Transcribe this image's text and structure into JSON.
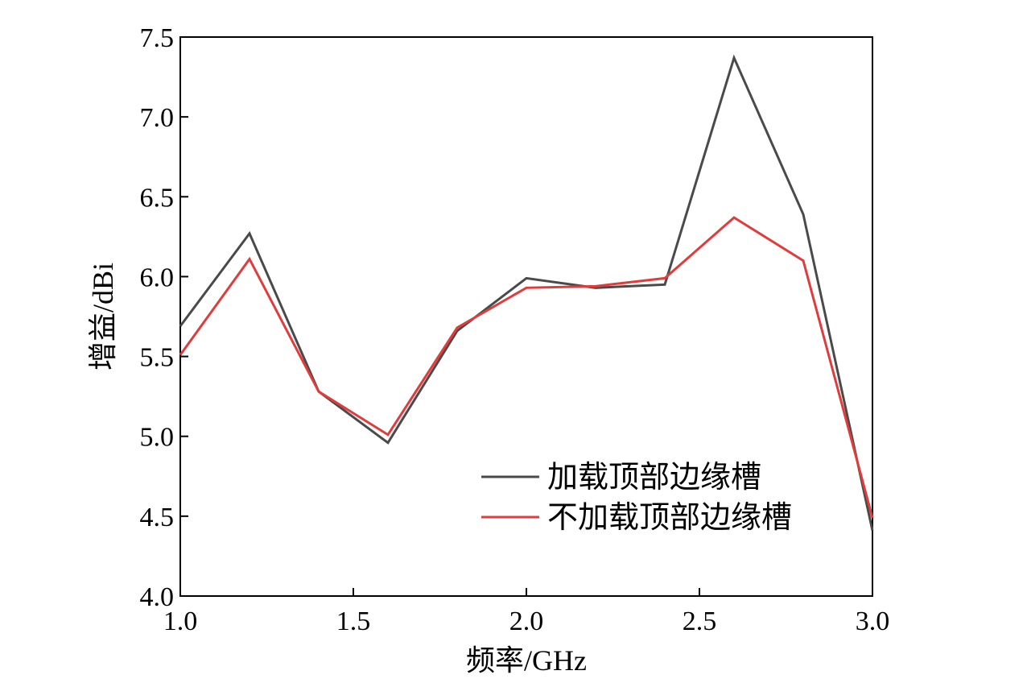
{
  "chart_data": {
    "type": "line",
    "title": "",
    "xlabel": "频率/GHz",
    "ylabel": "增益/dBi",
    "xlim": [
      1.0,
      3.0
    ],
    "ylim": [
      4.0,
      7.5
    ],
    "xticks": [
      "1.0",
      "1.5",
      "2.0",
      "2.5",
      "3.0"
    ],
    "yticks": [
      "4.0",
      "4.5",
      "5.0",
      "5.5",
      "6.0",
      "6.5",
      "7.0",
      "7.5"
    ],
    "grid": false,
    "legend_position": "bottom-right",
    "x": [
      1.0,
      1.2,
      1.4,
      1.6,
      1.8,
      2.0,
      2.2,
      2.4,
      2.6,
      2.8,
      3.0
    ],
    "series": [
      {
        "name": "加载顶部边缘槽",
        "color": "#4a4a4a",
        "values": [
          5.69,
          6.27,
          5.28,
          4.96,
          5.66,
          5.99,
          5.93,
          5.95,
          7.37,
          6.39,
          4.41
        ]
      },
      {
        "name": "不加载顶部边缘槽",
        "color": "#e03c3c",
        "values": [
          5.51,
          6.11,
          5.28,
          5.01,
          5.68,
          5.93,
          5.94,
          5.99,
          6.37,
          6.1,
          4.49
        ]
      }
    ]
  }
}
